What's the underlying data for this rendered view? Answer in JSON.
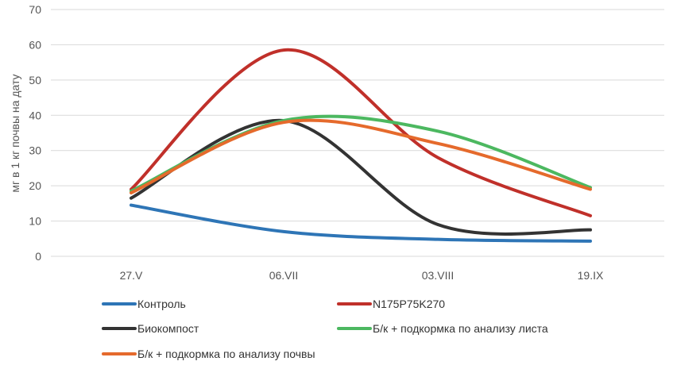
{
  "chart_data": {
    "type": "line",
    "title": "",
    "xlabel": "",
    "ylabel": "мг в 1 кг почвы на дату",
    "ylim": [
      0,
      70
    ],
    "yticks": [
      0,
      10,
      20,
      30,
      40,
      50,
      60,
      70
    ],
    "grid": true,
    "smooth": true,
    "legend_position": "bottom",
    "categories": [
      "27.V",
      "06.VII",
      "03.VIII",
      "19.IX"
    ],
    "series": [
      {
        "name": "Контроль",
        "color": "#2E75B6",
        "values": [
          14.5,
          7.0,
          4.8,
          4.3
        ]
      },
      {
        "name": "N175P75K270",
        "color": "#C0302A",
        "values": [
          19.0,
          58.5,
          28.0,
          11.5
        ]
      },
      {
        "name": "Биокомпост",
        "color": "#333333",
        "values": [
          16.5,
          38.5,
          9.0,
          7.5
        ]
      },
      {
        "name": "Б/к + подкормка по анализу листа",
        "color": "#4CB860",
        "values": [
          18.5,
          38.5,
          35.5,
          19.5
        ]
      },
      {
        "name": "Б/к + подкормка по анализу почвы",
        "color": "#E56A2C",
        "values": [
          18.0,
          38.0,
          32.0,
          19.0
        ]
      }
    ]
  }
}
